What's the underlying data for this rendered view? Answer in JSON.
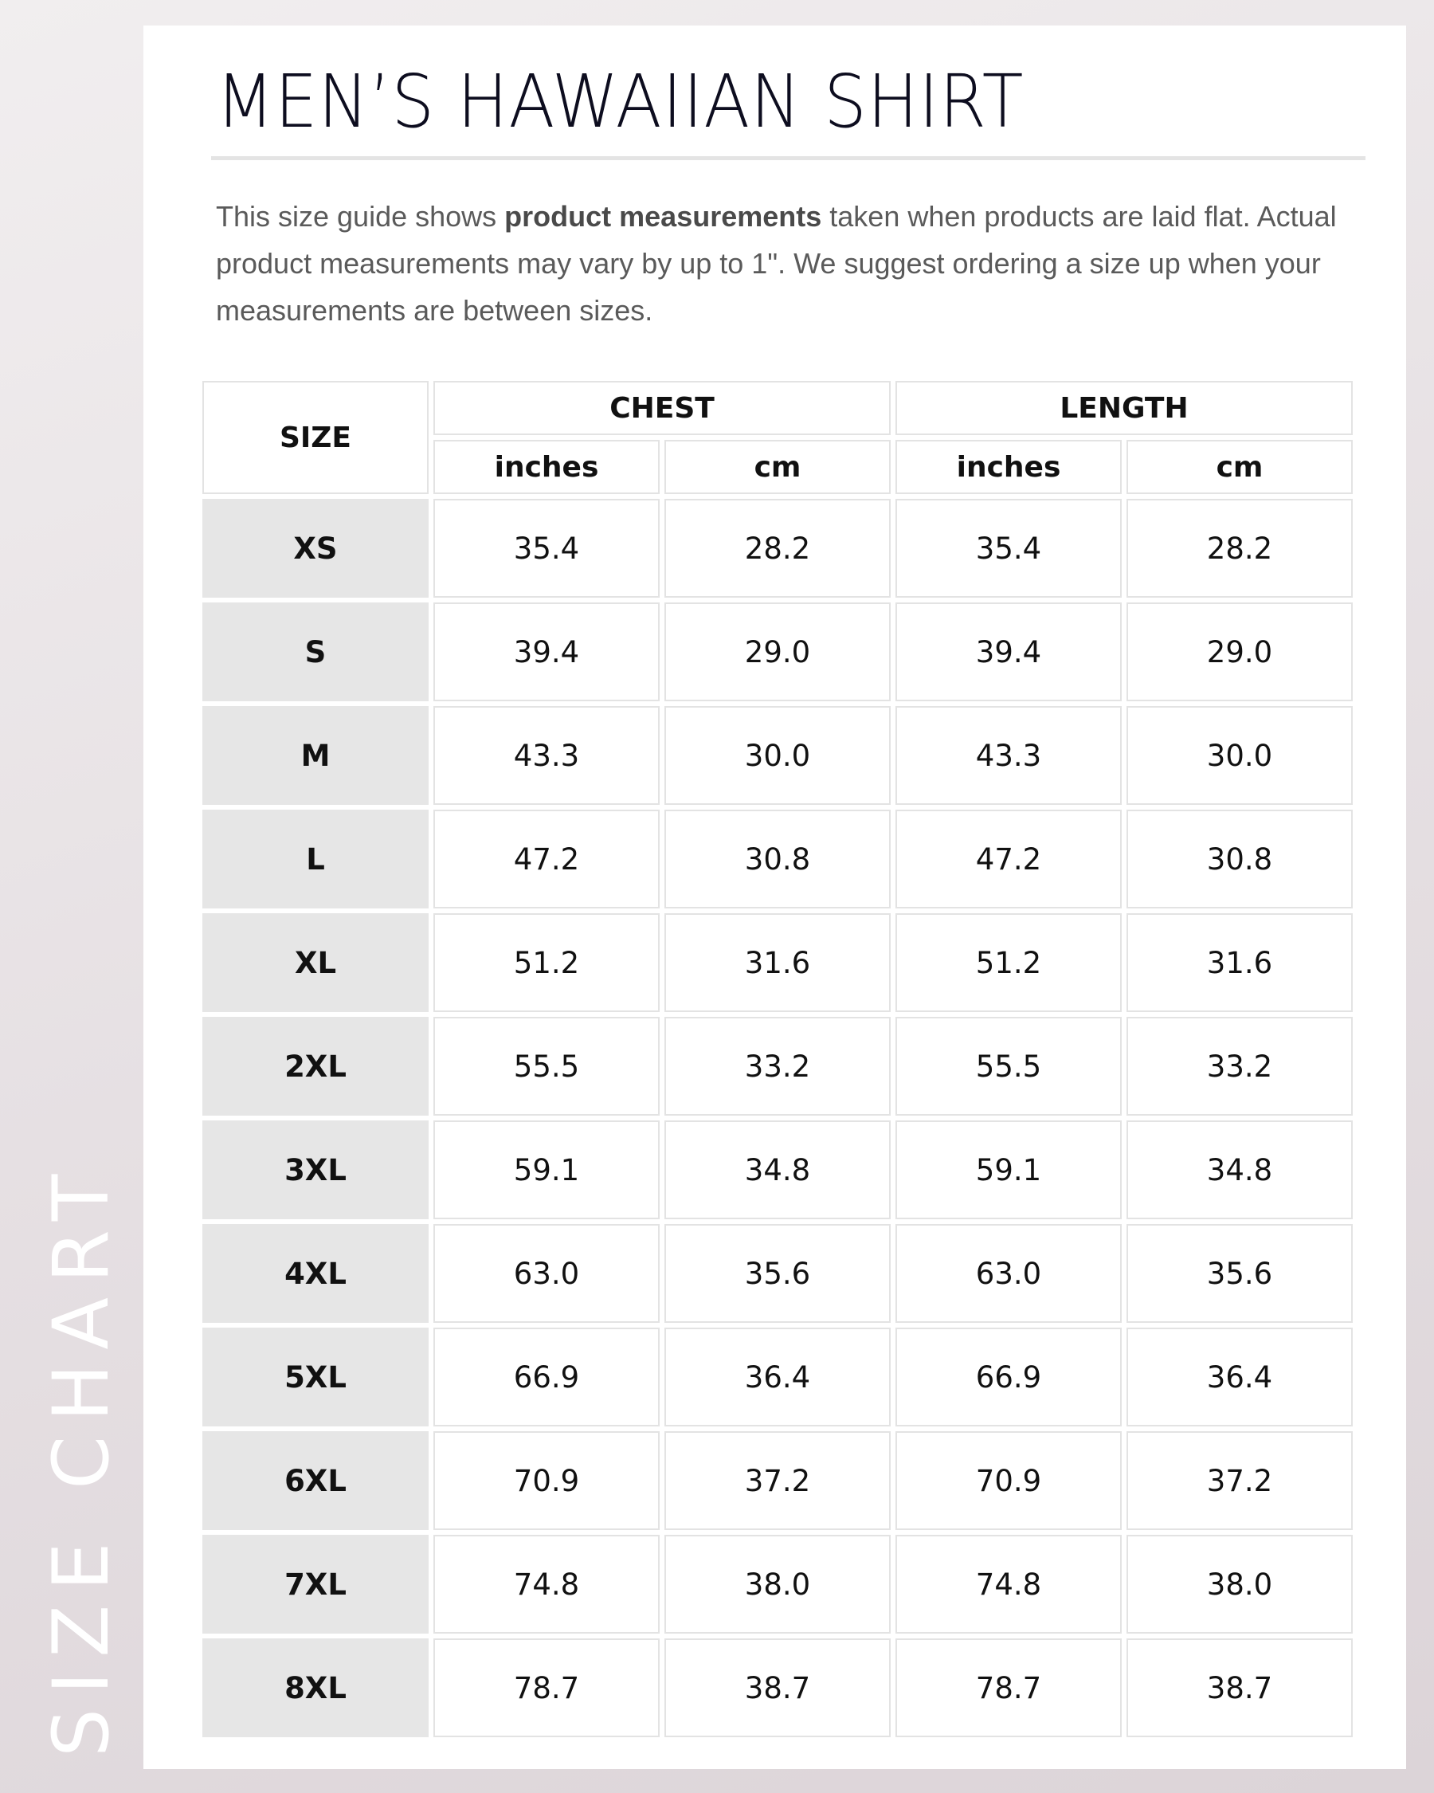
{
  "side_label": "SIZE CHART",
  "title": "MEN’S HAWAIIAN SHIRT",
  "intro": {
    "pre": "This size guide shows ",
    "bold": "product measurements",
    "post": " taken when products are laid flat. Actual product measurements may vary by up to 1\". We suggest ordering a size up when your measurements are between sizes."
  },
  "table": {
    "size_header": "SIZE",
    "groups": [
      "CHEST",
      "LENGTH"
    ],
    "units": [
      "inches",
      "cm",
      "inches",
      "cm"
    ],
    "rows": [
      [
        "XS",
        "35.4",
        "28.2",
        "35.4",
        "28.2"
      ],
      [
        "S",
        "39.4",
        "29.0",
        "39.4",
        "29.0"
      ],
      [
        "M",
        "43.3",
        "30.0",
        "43.3",
        "30.0"
      ],
      [
        "L",
        "47.2",
        "30.8",
        "47.2",
        "30.8"
      ],
      [
        "XL",
        "51.2",
        "31.6",
        "51.2",
        "31.6"
      ],
      [
        "2XL",
        "55.5",
        "33.2",
        "55.5",
        "33.2"
      ],
      [
        "3XL",
        "59.1",
        "34.8",
        "59.1",
        "34.8"
      ],
      [
        "4XL",
        "63.0",
        "35.6",
        "63.0",
        "35.6"
      ],
      [
        "5XL",
        "66.9",
        "36.4",
        "66.9",
        "36.4"
      ],
      [
        "6XL",
        "70.9",
        "37.2",
        "70.9",
        "37.2"
      ],
      [
        "7XL",
        "74.8",
        "38.0",
        "74.8",
        "38.0"
      ],
      [
        "8XL",
        "78.7",
        "38.7",
        "78.7",
        "38.7"
      ]
    ]
  }
}
